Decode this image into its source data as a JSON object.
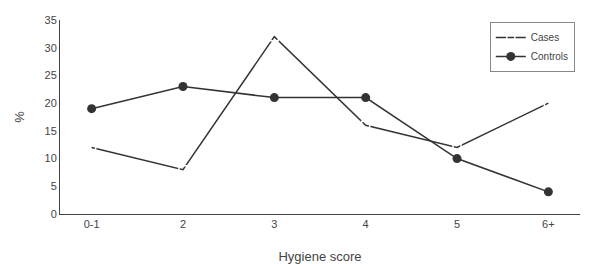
{
  "chart_data": {
    "type": "line",
    "categories": [
      "0-1",
      "2",
      "3",
      "4",
      "5",
      "6+"
    ],
    "series": [
      {
        "name": "Cases",
        "color": "#333333",
        "marker": "square-open",
        "line_style": "solid",
        "values": [
          12,
          8,
          32,
          16,
          12,
          20
        ]
      },
      {
        "name": "Controls",
        "color": "#333333",
        "marker": "circle",
        "line_style": "solid",
        "values": [
          19,
          23,
          21,
          21,
          10,
          4
        ]
      }
    ],
    "xlabel": "Hygiene score",
    "ylabel": "%",
    "ylim": [
      0,
      35
    ],
    "yticks": [
      0,
      5,
      10,
      15,
      20,
      25,
      30,
      35
    ],
    "grid": false,
    "legend": "upper right"
  }
}
